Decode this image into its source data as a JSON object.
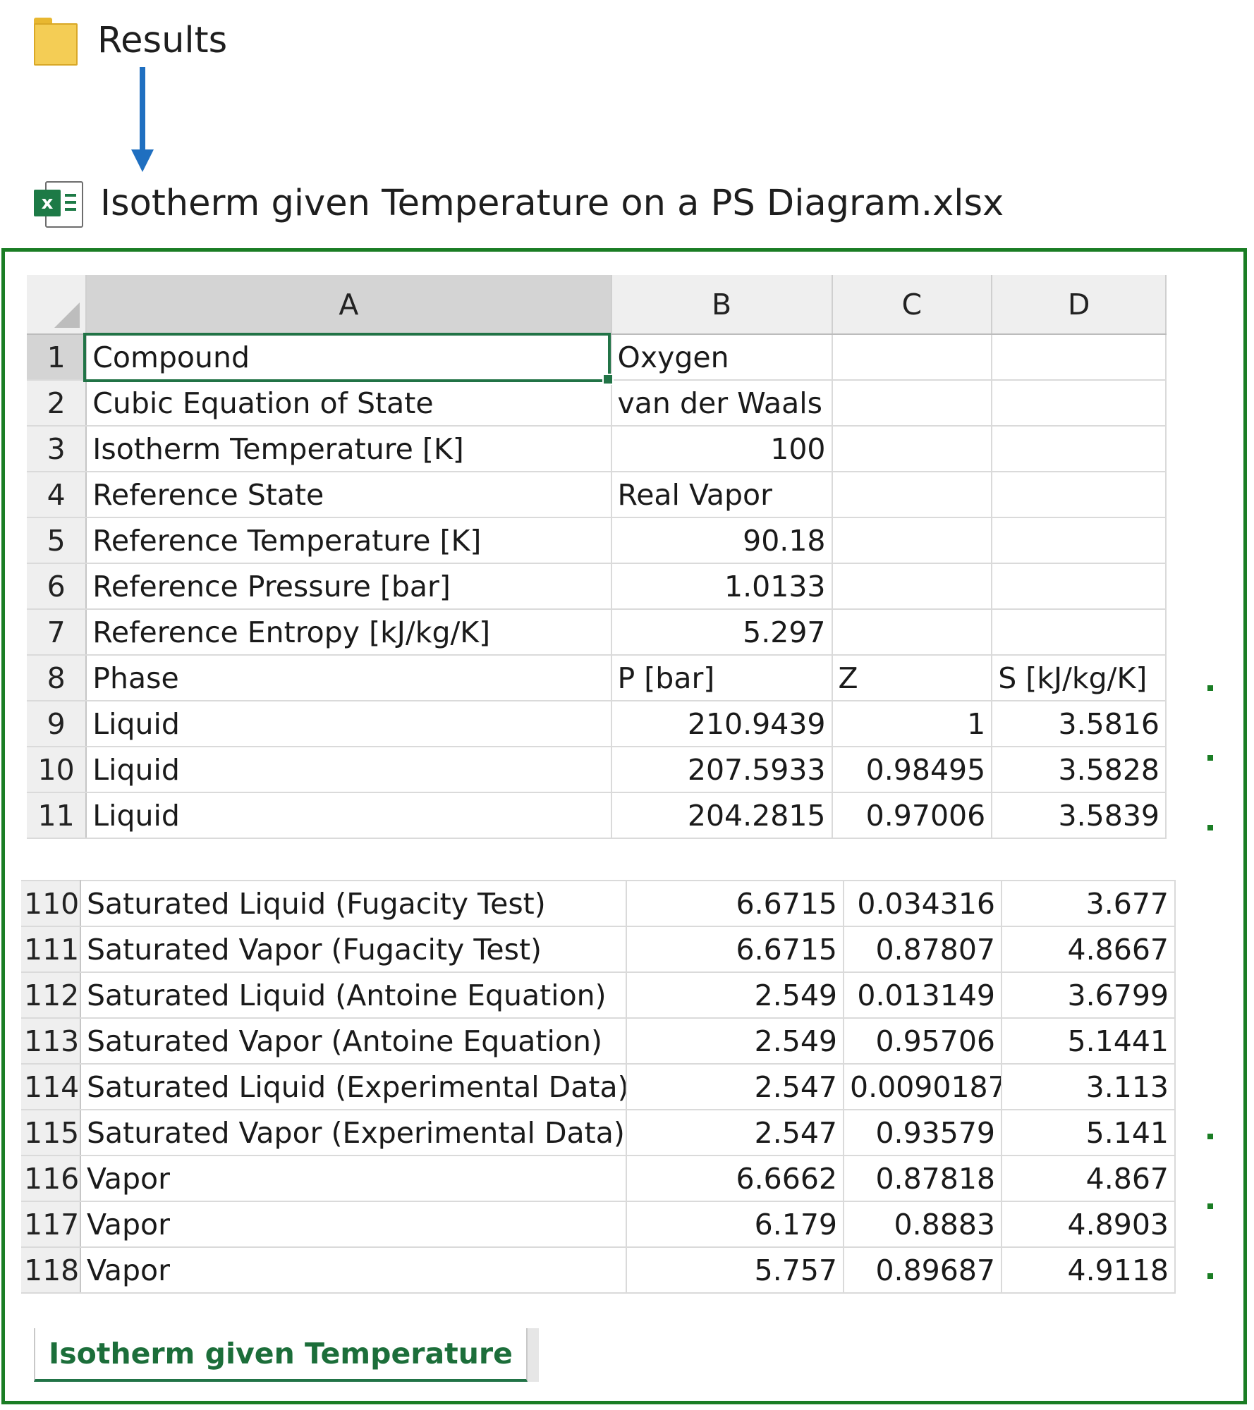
{
  "explorer": {
    "folder": {
      "icon": "folder-icon",
      "label": "Results"
    },
    "file": {
      "icon": "excel-file-icon",
      "label": "Isotherm given Temperature on a PS Diagram.xlsx"
    }
  },
  "colors": {
    "frame": "#1a7d24",
    "arrow": "#1f6fc0",
    "excel_green": "#217346"
  },
  "spreadsheet": {
    "columns": [
      "A",
      "B",
      "C",
      "D"
    ],
    "selected_column": "A",
    "active_cell": "A1",
    "rows_top": [
      {
        "n": "1",
        "a": "Compound",
        "b": "Oxygen",
        "c": "",
        "d": ""
      },
      {
        "n": "2",
        "a": "Cubic Equation of State",
        "b": "van der Waals",
        "c": "",
        "d": ""
      },
      {
        "n": "3",
        "a": "Isotherm Temperature [K]",
        "b": "100",
        "c": "",
        "d": ""
      },
      {
        "n": "4",
        "a": "Reference State",
        "b": "Real Vapor",
        "c": "",
        "d": ""
      },
      {
        "n": "5",
        "a": "Reference Temperature [K]",
        "b": "90.18",
        "c": "",
        "d": ""
      },
      {
        "n": "6",
        "a": "Reference Pressure [bar]",
        "b": "1.0133",
        "c": "",
        "d": ""
      },
      {
        "n": "7",
        "a": "Reference Entropy [kJ/kg/K]",
        "b": "5.297",
        "c": "",
        "d": ""
      },
      {
        "n": "8",
        "a": "Phase",
        "b": "P [bar]",
        "c": "Z",
        "d": "S [kJ/kg/K]"
      },
      {
        "n": "9",
        "a": "Liquid",
        "b": "210.9439",
        "c": "1",
        "d": "3.5816"
      },
      {
        "n": "10",
        "a": "Liquid",
        "b": "207.5933",
        "c": "0.98495",
        "d": "3.5828"
      },
      {
        "n": "11",
        "a": "Liquid",
        "b": "204.2815",
        "c": "0.97006",
        "d": "3.5839"
      }
    ],
    "rows_bottom": [
      {
        "n": "110",
        "a": "Saturated Liquid (Fugacity Test)",
        "b": "6.6715",
        "c": "0.034316",
        "d": "3.677"
      },
      {
        "n": "111",
        "a": "Saturated Vapor (Fugacity Test)",
        "b": "6.6715",
        "c": "0.87807",
        "d": "4.8667"
      },
      {
        "n": "112",
        "a": "Saturated Liquid (Antoine Equation)",
        "b": "2.549",
        "c": "0.013149",
        "d": "3.6799"
      },
      {
        "n": "113",
        "a": "Saturated Vapor (Antoine Equation)",
        "b": "2.549",
        "c": "0.95706",
        "d": "5.1441"
      },
      {
        "n": "114",
        "a": "Saturated Liquid (Experimental Data)",
        "b": "2.547",
        "c": "0.0090187",
        "d": "3.113"
      },
      {
        "n": "115",
        "a": "Saturated Vapor (Experimental Data)",
        "b": "2.547",
        "c": "0.93579",
        "d": "5.141"
      },
      {
        "n": "116",
        "a": "Vapor",
        "b": "6.6662",
        "c": "0.87818",
        "d": "4.867"
      },
      {
        "n": "117",
        "a": "Vapor",
        "b": "6.179",
        "c": "0.8883",
        "d": "4.8903"
      },
      {
        "n": "118",
        "a": "Vapor",
        "b": "5.757",
        "c": "0.89687",
        "d": "4.9118"
      }
    ],
    "sheet_tab": "Isotherm given Temperature"
  }
}
